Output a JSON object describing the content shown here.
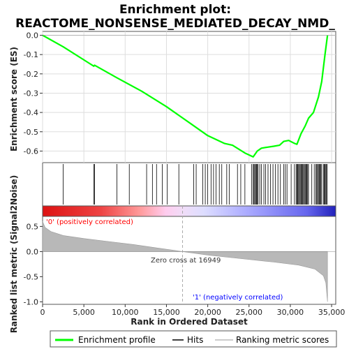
{
  "chart_data": {
    "type": "line",
    "title_line1": "Enrichment plot:",
    "title_line2": "REACTOME_NONSENSE_MEDIATED_DECAY_NMD_",
    "xlabel": "Rank in Ordered Dataset",
    "ylabel_top": "Enrichment score (ES)",
    "ylabel_bottom": "Ranked list metric (Signal2Noise)",
    "xlim": [
      0,
      35500
    ],
    "ylim_es": [
      -0.66,
      0.02
    ],
    "ylim_metric": [
      -1.05,
      0.7
    ],
    "x_ticks": [
      0,
      5000,
      10000,
      15000,
      20000,
      25000,
      30000,
      35000
    ],
    "x_tick_labels": [
      "0",
      "5,000",
      "10,000",
      "15,000",
      "20,000",
      "25,000",
      "30,000",
      "35,000"
    ],
    "es_ticks": [
      0.0,
      -0.1,
      -0.2,
      -0.3,
      -0.4,
      -0.5,
      -0.6
    ],
    "es_tick_labels": [
      "0.0",
      "-0.1",
      "-0.2",
      "-0.3",
      "-0.4",
      "-0.5",
      "-0.6"
    ],
    "metric_ticks": [
      0.5,
      0.0,
      -0.5,
      -1.0
    ],
    "metric_tick_labels": [
      "0.5",
      "0.0",
      "-0.5",
      "-1.0"
    ],
    "series": [
      {
        "name": "Enrichment profile",
        "color": "#00ff00",
        "x": [
          0,
          2500,
          6200,
          6300,
          9000,
          12000,
          15000,
          18000,
          20000,
          22000,
          23000,
          24500,
          25500,
          26000,
          26500,
          27200,
          28000,
          28700,
          29200,
          29800,
          30500,
          30800,
          31300,
          31800,
          32200,
          32800,
          33400,
          33800,
          34200,
          34500
        ],
        "y": [
          0.0,
          -0.06,
          -0.16,
          -0.155,
          -0.22,
          -0.29,
          -0.37,
          -0.46,
          -0.52,
          -0.56,
          -0.57,
          -0.61,
          -0.63,
          -0.6,
          -0.585,
          -0.58,
          -0.575,
          -0.57,
          -0.55,
          -0.545,
          -0.56,
          -0.565,
          -0.51,
          -0.47,
          -0.43,
          -0.4,
          -0.32,
          -0.24,
          -0.1,
          0.0
        ]
      }
    ],
    "hits_x": [
      2500,
      6200,
      6300,
      9000,
      10500,
      12600,
      13300,
      13800,
      14500,
      15100,
      16500,
      18300,
      18600,
      19400,
      19700,
      20000,
      20400,
      20700,
      21000,
      21400,
      21700,
      22300,
      22600,
      23600,
      24000,
      24500,
      25300,
      25500,
      25600,
      25700,
      25800,
      25900,
      26000,
      26100,
      26300,
      26500,
      26800,
      27000,
      27300,
      27600,
      27900,
      28200,
      28500,
      28800,
      29200,
      29400,
      29600,
      30100,
      30500,
      30700,
      30800,
      30900,
      31000,
      31100,
      31200,
      31300,
      31400,
      31500,
      31600,
      31700,
      31800,
      31900,
      32000,
      32100,
      32200,
      32600,
      32900,
      33100,
      33200,
      33300,
      33400,
      33500,
      33600,
      33700,
      33800,
      34000,
      34100,
      34200,
      34300,
      34400,
      34450
    ],
    "metric": {
      "x": [
        0,
        300,
        1000,
        2500,
        5000,
        8000,
        11000,
        14000,
        16949,
        20000,
        24000,
        28000,
        31000,
        33000,
        34000,
        34300,
        34500
      ],
      "y": [
        0.6,
        0.48,
        0.4,
        0.32,
        0.26,
        0.2,
        0.14,
        0.07,
        0.0,
        -0.07,
        -0.14,
        -0.21,
        -0.27,
        -0.35,
        -0.48,
        -0.62,
        -1.0
      ]
    },
    "zero_cross_label": "Zero cross at 16949",
    "pos_label": "'0' (positively correlated)",
    "neg_label": "'1' (negatively correlated)",
    "legend": [
      {
        "label": "Enrichment profile",
        "color": "#00ff00"
      },
      {
        "label": "Hits",
        "color": "#000000"
      },
      {
        "label": "Ranking metric scores",
        "color": "#bbbbbb"
      }
    ],
    "colors": {
      "pos_label": "#ff0000",
      "neg_label": "#0000ff",
      "metric_fill": "#b8b8b8",
      "zero_line": "#aaaaaa"
    }
  }
}
